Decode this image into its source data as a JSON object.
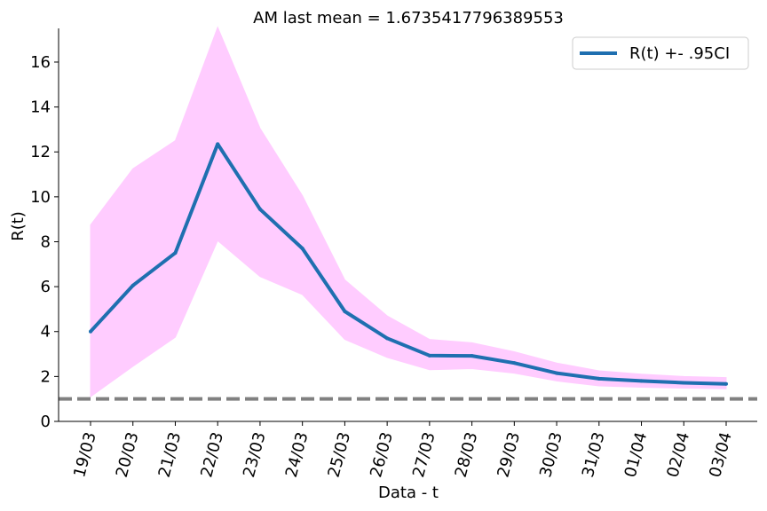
{
  "chart_data": {
    "type": "line",
    "title": "AM last mean = 1.6735417796389553",
    "xlabel": "Data - t",
    "ylabel": "R(t)",
    "categories": [
      "19/03",
      "20/03",
      "21/03",
      "22/03",
      "23/03",
      "24/03",
      "25/03",
      "26/03",
      "27/03",
      "28/03",
      "29/03",
      "30/03",
      "31/03",
      "01/04",
      "02/04",
      "03/04"
    ],
    "series": [
      {
        "name": "R(t) +- .95CI",
        "values": [
          4.0,
          6.05,
          7.5,
          12.35,
          9.45,
          7.7,
          4.9,
          3.7,
          2.93,
          2.92,
          2.6,
          2.15,
          1.9,
          1.8,
          1.72,
          1.67
        ],
        "lower": [
          1.1,
          2.45,
          3.75,
          8.05,
          6.45,
          5.65,
          3.65,
          2.85,
          2.3,
          2.35,
          2.15,
          1.8,
          1.58,
          1.52,
          1.48,
          1.45
        ],
        "upper": [
          8.75,
          11.25,
          12.5,
          17.55,
          13.05,
          10.05,
          6.3,
          4.7,
          3.65,
          3.5,
          3.1,
          2.6,
          2.25,
          2.1,
          2.0,
          1.95
        ],
        "color": "#1f6fb0",
        "band_color": "#ffccff"
      }
    ],
    "reference_line": {
      "y": 1.0,
      "color": "#808080",
      "style": "dashed"
    },
    "yticks": [
      "0",
      "2",
      "4",
      "6",
      "8",
      "10",
      "12",
      "14",
      "16"
    ],
    "ylim": [
      0,
      17.5
    ],
    "legend": {
      "label": "R(t) +- .95CI",
      "position": "top-right"
    },
    "grid": false
  }
}
